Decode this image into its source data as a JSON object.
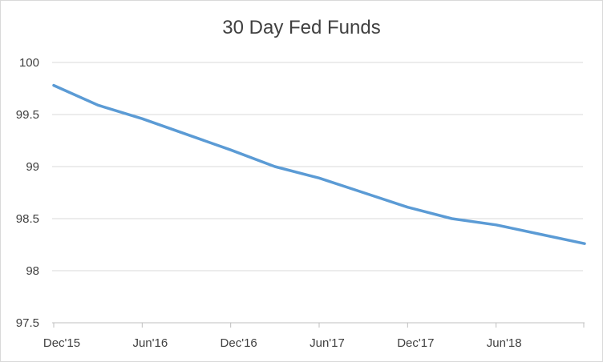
{
  "chart_data": {
    "type": "line",
    "title": "30 Day Fed Funds",
    "xlabel": "",
    "ylabel": "",
    "ylim": [
      97.5,
      100
    ],
    "y_ticks": [
      97.5,
      98,
      98.5,
      99,
      99.5,
      100
    ],
    "y_tick_labels": [
      "97.5",
      "98",
      "98.5",
      "99",
      "99.5",
      "100"
    ],
    "x_tick_labels": [
      "Dec'15",
      "Jun'16",
      "Dec'16",
      "Jun'17",
      "Dec'17",
      "Jun'18"
    ],
    "grid": true,
    "legend": "none",
    "series": [
      {
        "color": "#5b9bd5",
        "x": [
          "Dec'15",
          "Mar'16",
          "Jun'16",
          "Sep'16",
          "Dec'16",
          "Mar'17",
          "Jun'17",
          "Sep'17",
          "Dec'17",
          "Mar'18",
          "Jun'18",
          "Sep'18",
          "Dec'18"
        ],
        "values": [
          99.78,
          99.59,
          99.46,
          99.31,
          99.16,
          99.0,
          98.89,
          98.75,
          98.61,
          98.5,
          98.44,
          98.35,
          98.26
        ]
      }
    ]
  }
}
